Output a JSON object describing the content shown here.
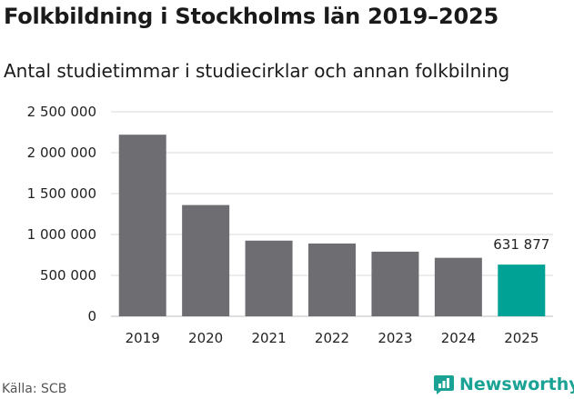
{
  "title": "Folkbildning i Stockholms län 2019–2025",
  "subtitle": "Antal studietimmar i studiecirklar och annan folkbilning",
  "source": "Källa: SCB",
  "brand": {
    "name": "Newsworthy",
    "logo": "newsworthy-logo-icon"
  },
  "colors": {
    "bar": "#6e6d72",
    "highlight": "#00a295",
    "grid": "#d9d9d9"
  },
  "chart_data": {
    "type": "bar",
    "title": "Folkbildning i Stockholms län 2019–2025",
    "subtitle": "Antal studietimmar i studiecirklar och annan folkbilning",
    "xlabel": "",
    "ylabel": "",
    "categories": [
      "2019",
      "2020",
      "2021",
      "2022",
      "2023",
      "2024",
      "2025"
    ],
    "values": [
      2220000,
      1360000,
      925000,
      890000,
      790000,
      715000,
      631877
    ],
    "highlight_index": 6,
    "data_labels": [
      {
        "index": 6,
        "text": "631 877"
      }
    ],
    "ylim": [
      0,
      2500000
    ],
    "yticks": [
      0,
      500000,
      1000000,
      1500000,
      2000000,
      2500000
    ],
    "ytick_labels": [
      "0",
      "500 000",
      "1 000 000",
      "1 500 000",
      "2 000 000",
      "2 500 000"
    ],
    "grid": true,
    "legend": "none"
  }
}
